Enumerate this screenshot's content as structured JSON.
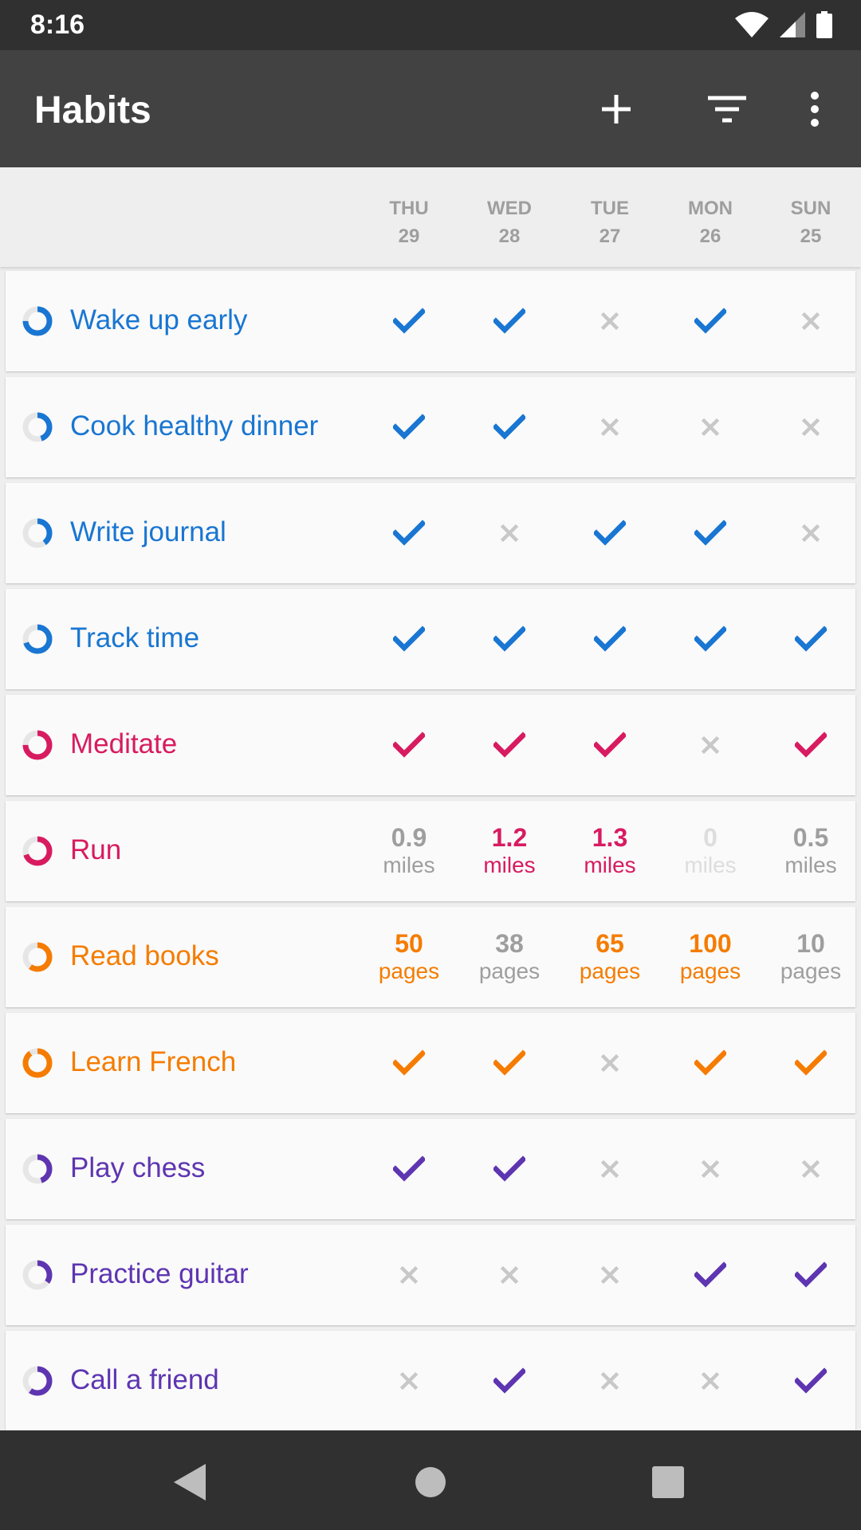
{
  "status_bar": {
    "time": "8:16",
    "icons": [
      "wifi-icon",
      "cell-signal-icon",
      "battery-icon"
    ]
  },
  "app_bar": {
    "title": "Habits",
    "actions": [
      "add-icon",
      "filter-icon",
      "more-vert-icon"
    ]
  },
  "colors": {
    "blue": "#1976d2",
    "pink": "#d81b60",
    "orange": "#f57c00",
    "purple": "#5e35b1",
    "inactive": "#c8c8c8",
    "muted": "#9e9e9e",
    "zero": "#dddddd"
  },
  "days": [
    {
      "dow": "THU",
      "date": "29"
    },
    {
      "dow": "WED",
      "date": "28"
    },
    {
      "dow": "TUE",
      "date": "27"
    },
    {
      "dow": "MON",
      "date": "26"
    },
    {
      "dow": "SUN",
      "date": "25"
    }
  ],
  "habits": [
    {
      "name": "Wake up early",
      "color": "#1976d2",
      "score": 0.75,
      "type": "check",
      "values": [
        true,
        true,
        false,
        true,
        false
      ]
    },
    {
      "name": "Cook healthy dinner",
      "color": "#1976d2",
      "score": 0.45,
      "type": "check",
      "values": [
        true,
        true,
        false,
        false,
        false
      ]
    },
    {
      "name": "Write journal",
      "color": "#1976d2",
      "score": 0.4,
      "type": "check",
      "values": [
        true,
        false,
        true,
        true,
        false
      ]
    },
    {
      "name": "Track time",
      "color": "#1976d2",
      "score": 0.7,
      "type": "check",
      "values": [
        true,
        true,
        true,
        true,
        true
      ]
    },
    {
      "name": "Meditate",
      "color": "#d81b60",
      "score": 0.75,
      "type": "check",
      "values": [
        true,
        true,
        true,
        false,
        true
      ]
    },
    {
      "name": "Run",
      "color": "#d81b60",
      "score": 0.7,
      "type": "number",
      "unit": "miles",
      "values": [
        {
          "v": "0.9",
          "s": "muted"
        },
        {
          "v": "1.2",
          "s": "met"
        },
        {
          "v": "1.3",
          "s": "met"
        },
        {
          "v": "0",
          "s": "zero"
        },
        {
          "v": "0.5",
          "s": "muted"
        }
      ]
    },
    {
      "name": "Read books",
      "color": "#f57c00",
      "score": 0.6,
      "type": "number",
      "unit": "pages",
      "values": [
        {
          "v": "50",
          "s": "met"
        },
        {
          "v": "38",
          "s": "muted"
        },
        {
          "v": "65",
          "s": "met"
        },
        {
          "v": "100",
          "s": "met"
        },
        {
          "v": "10",
          "s": "muted"
        }
      ]
    },
    {
      "name": "Learn French",
      "color": "#f57c00",
      "score": 0.9,
      "type": "check",
      "values": [
        true,
        true,
        false,
        true,
        true
      ]
    },
    {
      "name": "Play chess",
      "color": "#5e35b1",
      "score": 0.45,
      "type": "check",
      "values": [
        true,
        true,
        false,
        false,
        false
      ]
    },
    {
      "name": "Practice guitar",
      "color": "#5e35b1",
      "score": 0.35,
      "type": "check",
      "values": [
        false,
        false,
        false,
        true,
        true
      ]
    },
    {
      "name": "Call a friend",
      "color": "#5e35b1",
      "score": 0.6,
      "type": "check",
      "values": [
        false,
        true,
        false,
        false,
        true
      ]
    }
  ],
  "nav_bar": [
    "back-icon",
    "home-icon",
    "recents-icon"
  ]
}
